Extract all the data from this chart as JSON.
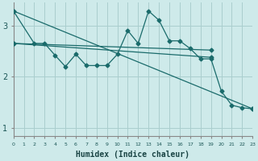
{
  "xlabel": "Humidex (Indice chaleur)",
  "background_color": "#ceeaea",
  "grid_color": "#aacece",
  "line_color": "#1a6b6b",
  "marker": "D",
  "markersize": 2.5,
  "linewidth": 0.9,
  "xlim": [
    0,
    23
  ],
  "ylim": [
    0.85,
    3.45
  ],
  "yticks": [
    1,
    2,
    3
  ],
  "xticks": [
    0,
    1,
    2,
    3,
    4,
    5,
    6,
    7,
    8,
    9,
    10,
    11,
    12,
    13,
    14,
    15,
    16,
    17,
    18,
    19,
    20,
    21,
    22,
    23
  ],
  "series": [
    {
      "x": [
        0,
        2,
        3,
        4,
        5,
        6,
        7,
        8,
        9,
        10,
        11,
        12,
        13,
        14,
        15,
        16,
        17,
        18,
        19,
        20,
        21,
        22,
        23
      ],
      "y": [
        3.28,
        2.65,
        2.65,
        2.42,
        2.2,
        2.44,
        2.22,
        2.22,
        2.22,
        2.44,
        2.9,
        2.65,
        3.28,
        3.1,
        2.7,
        2.7,
        2.55,
        2.35,
        2.35,
        1.72,
        1.45,
        1.4,
        1.38
      ]
    },
    {
      "x": [
        0,
        23
      ],
      "y": [
        3.28,
        1.38
      ]
    },
    {
      "x": [
        0,
        19
      ],
      "y": [
        2.65,
        2.52
      ]
    },
    {
      "x": [
        0,
        19
      ],
      "y": [
        2.65,
        2.38
      ]
    }
  ]
}
